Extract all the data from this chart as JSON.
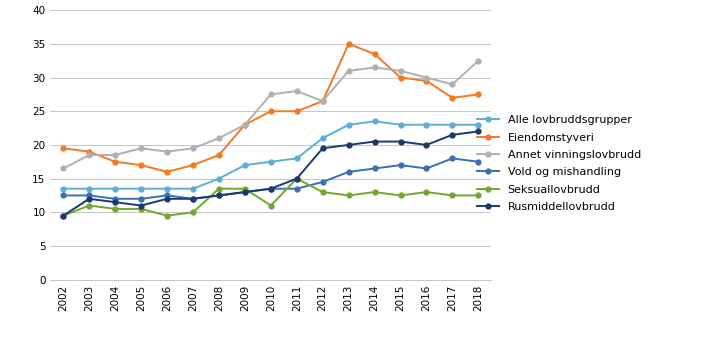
{
  "years": [
    2002,
    2003,
    2004,
    2005,
    2006,
    2007,
    2008,
    2009,
    2010,
    2011,
    2012,
    2013,
    2014,
    2015,
    2016,
    2017,
    2018
  ],
  "series": {
    "Alle lovbruddsgrupper": [
      13.5,
      13.5,
      13.5,
      13.5,
      13.5,
      13.5,
      15.0,
      17.0,
      17.5,
      18.0,
      21.0,
      23.0,
      23.5,
      23.0,
      23.0,
      23.0,
      23.0
    ],
    "Eiendomstyveri": [
      19.5,
      19.0,
      17.5,
      17.0,
      16.0,
      17.0,
      18.5,
      23.0,
      25.0,
      25.0,
      26.5,
      35.0,
      33.5,
      30.0,
      29.5,
      27.0,
      27.5
    ],
    "Annet vinningslovbrudd": [
      16.5,
      18.5,
      18.5,
      19.5,
      19.0,
      19.5,
      21.0,
      23.0,
      27.5,
      28.0,
      26.5,
      31.0,
      31.5,
      31.0,
      30.0,
      29.0,
      32.5
    ],
    "Vold og mishandling": [
      12.5,
      12.5,
      12.0,
      12.0,
      12.5,
      12.0,
      12.5,
      13.0,
      13.5,
      13.5,
      14.5,
      16.0,
      16.5,
      17.0,
      16.5,
      18.0,
      17.5
    ],
    "Seksuallovbrudd": [
      9.5,
      11.0,
      10.5,
      10.5,
      9.5,
      10.0,
      13.5,
      13.5,
      11.0,
      15.0,
      13.0,
      12.5,
      13.0,
      12.5,
      13.0,
      12.5,
      12.5
    ],
    "Rusmiddellovbrudd": [
      9.5,
      12.0,
      11.5,
      11.0,
      12.0,
      12.0,
      12.5,
      13.0,
      13.5,
      15.0,
      19.5,
      20.0,
      20.5,
      20.5,
      20.0,
      21.5,
      22.0
    ]
  },
  "colors": {
    "Alle lovbruddsgrupper": "#5bafd6",
    "Eiendomstyveri": "#f47920",
    "Annet vinningslovbrudd": "#b0b0b0",
    "Vold og mishandling": "#3b6faf",
    "Seksuallovbrudd": "#70a830",
    "Rusmiddellovbrudd": "#1a3a6e"
  },
  "ylim": [
    0,
    40
  ],
  "yticks": [
    0,
    5,
    10,
    15,
    20,
    25,
    30,
    35,
    40
  ],
  "background_color": "#ffffff",
  "grid_color": "#bbbbbb",
  "marker": "o",
  "markersize": 3.5,
  "linewidth": 1.4,
  "legend_order": [
    "Alle lovbruddsgrupper",
    "Eiendomstyveri",
    "Annet vinningslovbrudd",
    "Vold og mishandling",
    "Seksuallovbrudd",
    "Rusmiddellovbrudd"
  ]
}
